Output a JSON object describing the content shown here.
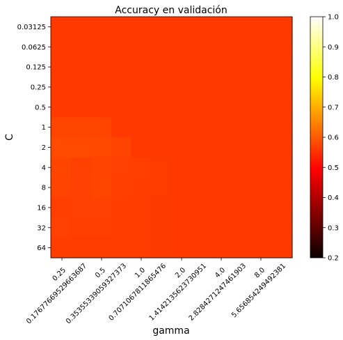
{
  "chart_data": {
    "type": "heatmap",
    "title": "Accuracy en validación",
    "xlabel": "gamma",
    "ylabel": "C",
    "x_ticklabels": [
      "0.17677669529663687",
      "0.35355339059327373",
      "0.7071067811865476",
      "1.4142135623730951",
      "2.8284271247461903",
      "5.656854249492381"
    ],
    "x_ticklabels_overlay": [
      "0.25",
      "0.5",
      "1.0",
      "2.0",
      "4.0",
      "8.0"
    ],
    "y_ticklabels": [
      "0.03125",
      "0.0625",
      "0.125",
      "0.25",
      "0.5",
      "1",
      "2",
      "4",
      "8",
      "16",
      "32",
      "64"
    ],
    "colorbar": {
      "vmin": 0.2,
      "vmax": 1.0,
      "ticks": [
        "0.2",
        "0.3",
        "0.4",
        "0.5",
        "0.6",
        "0.7",
        "0.8",
        "0.9",
        "1.0"
      ],
      "colormap": "hot"
    },
    "values": [
      [
        0.56,
        0.56,
        0.56,
        0.56,
        0.56,
        0.56,
        0.56,
        0.56,
        0.56,
        0.56,
        0.56,
        0.56
      ],
      [
        0.56,
        0.56,
        0.56,
        0.56,
        0.56,
        0.56,
        0.56,
        0.56,
        0.56,
        0.56,
        0.56,
        0.56
      ],
      [
        0.56,
        0.56,
        0.56,
        0.56,
        0.56,
        0.56,
        0.56,
        0.56,
        0.56,
        0.56,
        0.56,
        0.56
      ],
      [
        0.56,
        0.56,
        0.56,
        0.56,
        0.56,
        0.56,
        0.56,
        0.56,
        0.56,
        0.56,
        0.56,
        0.56
      ],
      [
        0.56,
        0.56,
        0.56,
        0.56,
        0.56,
        0.56,
        0.56,
        0.56,
        0.56,
        0.56,
        0.56,
        0.56
      ],
      [
        0.575,
        0.575,
        0.575,
        0.56,
        0.56,
        0.56,
        0.56,
        0.56,
        0.56,
        0.56,
        0.56,
        0.56
      ],
      [
        0.58,
        0.58,
        0.578,
        0.572,
        0.56,
        0.56,
        0.56,
        0.56,
        0.56,
        0.56,
        0.56,
        0.56
      ],
      [
        0.575,
        0.57,
        0.572,
        0.568,
        0.566,
        0.563,
        0.56,
        0.56,
        0.56,
        0.56,
        0.56,
        0.56
      ],
      [
        0.572,
        0.568,
        0.574,
        0.566,
        0.565,
        0.562,
        0.56,
        0.56,
        0.56,
        0.56,
        0.56,
        0.56
      ],
      [
        0.566,
        0.568,
        0.57,
        0.565,
        0.564,
        0.561,
        0.56,
        0.56,
        0.56,
        0.56,
        0.56,
        0.56
      ],
      [
        0.568,
        0.566,
        0.566,
        0.564,
        0.563,
        0.561,
        0.56,
        0.56,
        0.56,
        0.56,
        0.56,
        0.56
      ],
      [
        0.565,
        0.564,
        0.564,
        0.562,
        0.562,
        0.561,
        0.56,
        0.56,
        0.56,
        0.56,
        0.56,
        0.56
      ]
    ]
  }
}
